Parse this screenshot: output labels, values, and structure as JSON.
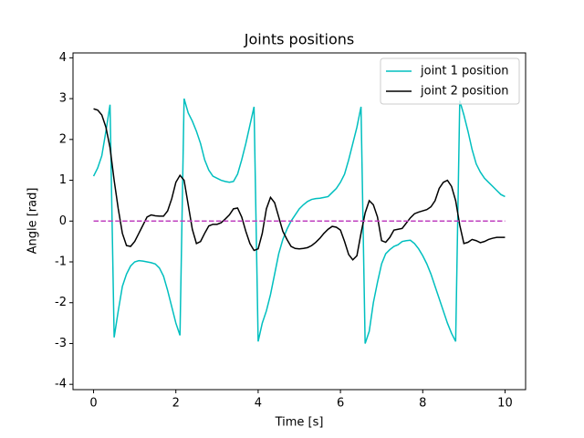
{
  "chart_data": {
    "type": "line",
    "title": "Joints positions",
    "xlabel": "Time [s]",
    "ylabel": "Angle [rad]",
    "x": [
      0,
      0.1,
      0.2,
      0.3,
      0.4,
      0.5,
      0.6,
      0.7,
      0.8,
      0.9,
      1,
      1.1,
      1.2,
      1.3,
      1.4,
      1.5,
      1.6,
      1.7,
      1.8,
      1.9,
      2,
      2.1,
      2.2,
      2.3,
      2.4,
      2.5,
      2.6,
      2.7,
      2.8,
      2.9,
      3,
      3.1,
      3.2,
      3.3,
      3.4,
      3.5,
      3.6,
      3.7,
      3.8,
      3.9,
      4,
      4.1,
      4.2,
      4.3,
      4.4,
      4.5,
      4.6,
      4.7,
      4.8,
      4.9,
      5,
      5.1,
      5.2,
      5.3,
      5.4,
      5.5,
      5.6,
      5.7,
      5.8,
      5.9,
      6,
      6.1,
      6.2,
      6.3,
      6.4,
      6.5,
      6.6,
      6.7,
      6.8,
      6.9,
      7,
      7.1,
      7.2,
      7.3,
      7.4,
      7.5,
      7.6,
      7.7,
      7.8,
      7.9,
      8,
      8.1,
      8.2,
      8.3,
      8.4,
      8.5,
      8.6,
      8.7,
      8.8,
      8.9,
      9,
      9.1,
      9.2,
      9.3,
      9.4,
      9.5,
      9.6,
      9.7,
      9.8,
      9.9,
      10
    ],
    "series": [
      {
        "name": "joint 1 position",
        "color": "#00bfbf",
        "values": [
          1.1,
          1.3,
          1.6,
          2.2,
          2.85,
          -2.85,
          -2.2,
          -1.6,
          -1.3,
          -1.1,
          -1.0,
          -0.97,
          -0.98,
          -1.0,
          -1.02,
          -1.05,
          -1.15,
          -1.35,
          -1.7,
          -2.1,
          -2.5,
          -2.8,
          3.0,
          2.65,
          2.45,
          2.2,
          1.9,
          1.5,
          1.25,
          1.1,
          1.05,
          1.0,
          0.97,
          0.95,
          0.97,
          1.15,
          1.5,
          1.9,
          2.35,
          2.8,
          -2.95,
          -2.5,
          -2.2,
          -1.8,
          -1.3,
          -0.8,
          -0.45,
          -0.2,
          0.0,
          0.15,
          0.3,
          0.4,
          0.48,
          0.53,
          0.55,
          0.56,
          0.58,
          0.6,
          0.7,
          0.8,
          0.95,
          1.15,
          1.5,
          1.9,
          2.3,
          2.8,
          -3.0,
          -2.7,
          -2.0,
          -1.5,
          -1.05,
          -0.8,
          -0.7,
          -0.62,
          -0.58,
          -0.5,
          -0.48,
          -0.47,
          -0.55,
          -0.68,
          -0.85,
          -1.05,
          -1.3,
          -1.6,
          -1.9,
          -2.2,
          -2.5,
          -2.75,
          -2.95,
          2.95,
          2.6,
          2.2,
          1.75,
          1.4,
          1.2,
          1.05,
          0.95,
          0.85,
          0.75,
          0.65,
          0.6
        ]
      },
      {
        "name": "joint 2 position",
        "color": "#000000",
        "values": [
          2.75,
          2.72,
          2.6,
          2.3,
          1.8,
          1.0,
          0.3,
          -0.3,
          -0.6,
          -0.62,
          -0.5,
          -0.3,
          -0.1,
          0.1,
          0.15,
          0.13,
          0.12,
          0.12,
          0.25,
          0.55,
          0.95,
          1.12,
          1.0,
          0.4,
          -0.2,
          -0.55,
          -0.5,
          -0.3,
          -0.12,
          -0.08,
          -0.08,
          -0.04,
          0.05,
          0.15,
          0.3,
          0.32,
          0.1,
          -0.25,
          -0.55,
          -0.72,
          -0.68,
          -0.3,
          0.3,
          0.58,
          0.45,
          0.1,
          -0.25,
          -0.45,
          -0.62,
          -0.67,
          -0.68,
          -0.67,
          -0.65,
          -0.6,
          -0.52,
          -0.42,
          -0.3,
          -0.2,
          -0.13,
          -0.15,
          -0.22,
          -0.5,
          -0.82,
          -0.95,
          -0.85,
          -0.3,
          0.2,
          0.5,
          0.4,
          0.1,
          -0.48,
          -0.52,
          -0.4,
          -0.22,
          -0.2,
          -0.18,
          -0.05,
          0.08,
          0.18,
          0.22,
          0.25,
          0.28,
          0.35,
          0.5,
          0.8,
          0.95,
          1.0,
          0.85,
          0.5,
          -0.1,
          -0.55,
          -0.52,
          -0.45,
          -0.48,
          -0.53,
          -0.5,
          -0.45,
          -0.42,
          -0.4,
          -0.4,
          -0.4
        ]
      },
      {
        "color": "#bf40bf",
        "linestyle": "dashed",
        "x": [
          0,
          10
        ],
        "values": [
          0,
          0
        ]
      }
    ],
    "xlim": [
      -0.5,
      10.5
    ],
    "xticks": [
      0,
      2,
      4,
      6,
      8,
      10
    ],
    "ylim": [
      -4.13,
      4.12
    ],
    "yticks": [
      -4,
      -3,
      -2,
      -1,
      0,
      1,
      2,
      3,
      4
    ],
    "legend": "upper right",
    "grid": false
  }
}
